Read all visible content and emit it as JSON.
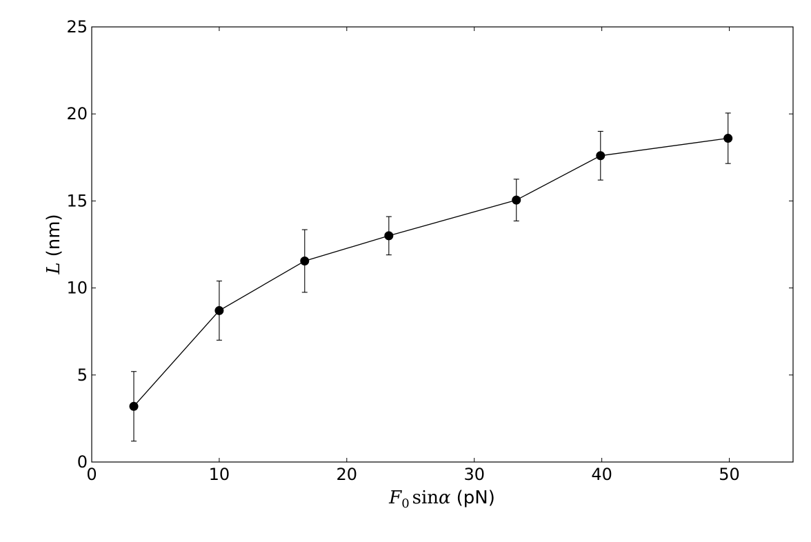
{
  "chart_data": {
    "type": "line",
    "xlabel": {
      "math_var": "F",
      "math_sub": "0",
      "math_func": "sin",
      "math_greek": "α",
      "unit": "(pN)"
    },
    "ylabel": {
      "math_var": "L",
      "unit": "(nm)"
    },
    "xlim": [
      0,
      55
    ],
    "ylim": [
      0,
      25
    ],
    "x_ticks": [
      0,
      10,
      20,
      30,
      40,
      50
    ],
    "y_ticks": [
      0,
      5,
      10,
      15,
      20,
      25
    ],
    "grid": false,
    "series": [
      {
        "x": [
          3.3,
          10.0,
          16.7,
          23.3,
          33.3,
          39.9,
          49.9
        ],
        "y": [
          3.2,
          8.7,
          11.55,
          13.0,
          15.05,
          17.6,
          18.6
        ],
        "yerr": [
          2.0,
          1.7,
          1.8,
          1.1,
          1.2,
          1.4,
          1.45
        ],
        "color": "#000000",
        "marker": "circle"
      }
    ]
  }
}
